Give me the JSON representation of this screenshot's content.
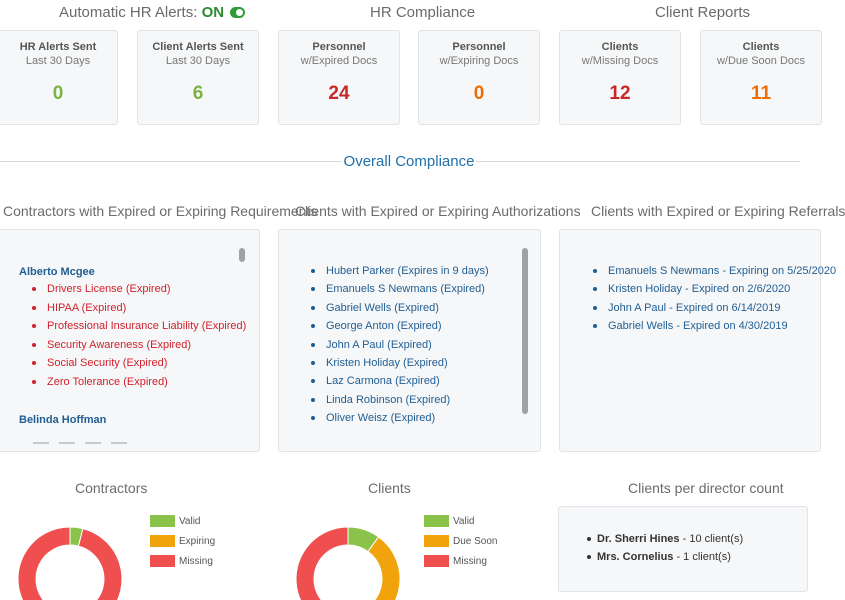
{
  "header": {
    "hr_alerts_label": "Automatic HR Alerts:",
    "hr_alerts_state": "ON",
    "hr_compliance_title": "HR Compliance",
    "client_reports_title": "Client Reports"
  },
  "cards": [
    {
      "title": "HR Alerts Sent",
      "subtitle": "Last 30 Days",
      "value": "0",
      "color": "#7cb342"
    },
    {
      "title": "Client Alerts Sent",
      "subtitle": "Last 30 Days",
      "value": "6",
      "color": "#7cb342"
    },
    {
      "title": "Personnel",
      "subtitle": "w/Expired Docs",
      "value": "24",
      "color": "#c62828"
    },
    {
      "title": "Personnel",
      "subtitle": "w/Expiring Docs",
      "value": "0",
      "color": "#ef6c00"
    },
    {
      "title": "Clients",
      "subtitle": "w/Missing Docs",
      "value": "12",
      "color": "#c62828"
    },
    {
      "title": "Clients",
      "subtitle": "w/Due Soon Docs",
      "value": "11",
      "color": "#ef6c00"
    }
  ],
  "overall_compliance": "Overall Compliance",
  "contractors_panel": {
    "title": "Contractors with Expired or Expiring Requirements",
    "people": [
      {
        "name": "Alberto Mcgee",
        "items": [
          "Drivers License (Expired)",
          "HIPAA (Expired)",
          "Professional Insurance Liability (Expired)",
          "Security Awareness (Expired)",
          "Social Security (Expired)",
          "Zero Tolerance (Expired)"
        ]
      },
      {
        "name": "Belinda Hoffman",
        "items": []
      }
    ]
  },
  "authorizations_panel": {
    "title": "Clients with Expired or Expiring Authorizations",
    "items": [
      "Hubert Parker (Expires in 9 days)",
      "Emanuels S Newmans (Expired)",
      "Gabriel Wells (Expired)",
      "George Anton (Expired)",
      "John A Paul (Expired)",
      "Kristen Holiday (Expired)",
      "Laz Carmona (Expired)",
      "Linda Robinson (Expired)",
      "Oliver Weisz (Expired)"
    ]
  },
  "referrals_panel": {
    "title": "Clients with Expired or Expiring Referrals",
    "items": [
      "Emanuels S Newmans - Expiring on 5/25/2020",
      "Kristen Holiday - Expired on 2/6/2020",
      "John A Paul - Expired on 6/14/2019",
      "Gabriel Wells - Expired on 4/30/2019"
    ]
  },
  "contractors_chart": {
    "title": "Contractors",
    "legend": [
      "Valid",
      "Expiring",
      "Missing"
    ],
    "colors": [
      "#8bc34a",
      "#f0a30a",
      "#ef4f4f"
    ],
    "fractions": [
      0.04,
      0.0,
      0.96
    ]
  },
  "clients_chart": {
    "title": "Clients",
    "legend": [
      "Valid",
      "Due Soon",
      "Missing"
    ],
    "colors": [
      "#8bc34a",
      "#f0a30a",
      "#ef4f4f"
    ],
    "fractions": [
      0.1,
      0.38,
      0.52
    ]
  },
  "directors_panel": {
    "title": "Clients per director count",
    "items": [
      {
        "name": "Dr. Sherri Hines",
        "count": " - 10 client(s)"
      },
      {
        "name": "Mrs. Cornelius",
        "count": " - 1 client(s)"
      }
    ]
  }
}
